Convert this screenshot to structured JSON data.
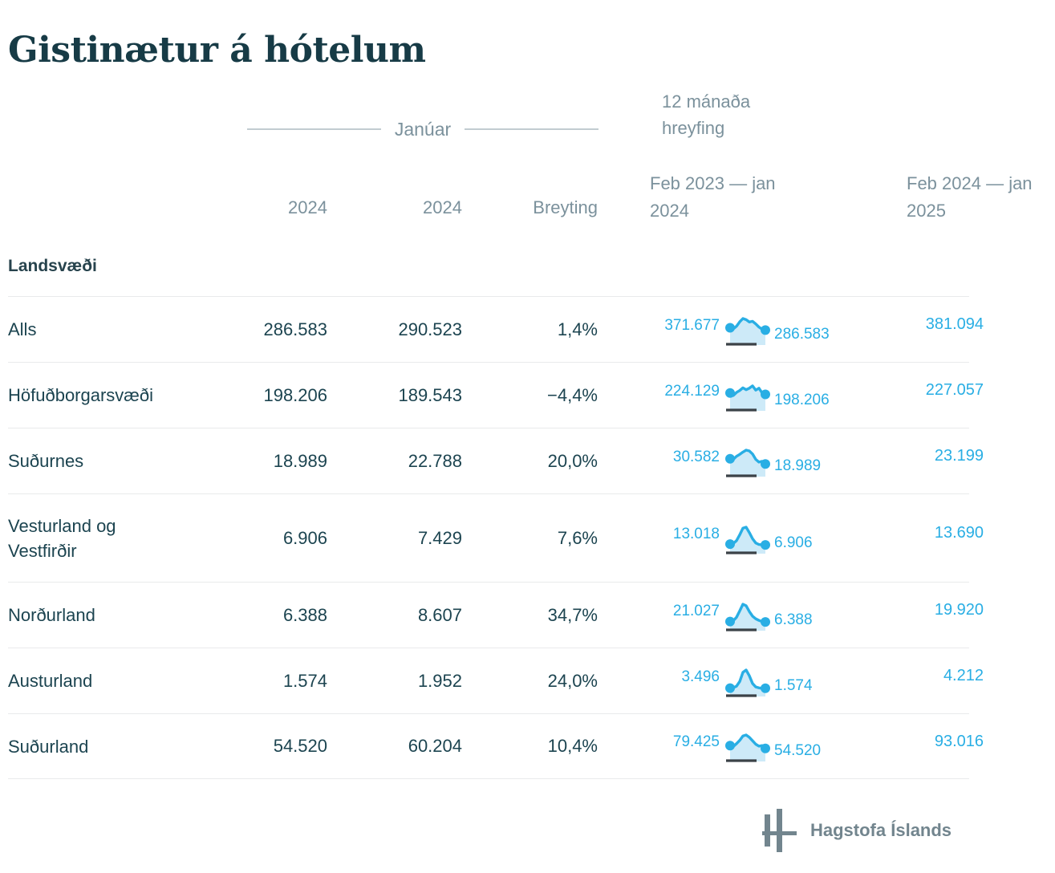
{
  "title": "Gistinætur á hótelum",
  "header": {
    "month_group": "Janúar",
    "movement_title": "12 mánaða hreyfing",
    "col_year_a": "2024",
    "col_year_b": "2024",
    "col_change": "Breyting",
    "period1": "Feb 2023 — jan 2024",
    "period2": "Feb 2024 — jan 2025"
  },
  "group_label": "Landsvæði",
  "rows": [
    {
      "name": "Alls",
      "v1": "286.583",
      "v2": "290.523",
      "change": "1,4%",
      "p1_start": "371.677",
      "p1_end": "286.583",
      "p2": "381.094",
      "series": [
        0.52,
        0.46,
        0.6,
        0.83,
        1.0,
        0.94,
        0.82,
        0.86,
        0.72,
        0.56,
        0.44,
        0.4
      ]
    },
    {
      "name": "Höfuðborgarsvæði",
      "v1": "198.206",
      "v2": "189.543",
      "change": "−4,4%",
      "p1_start": "224.129",
      "p1_end": "198.206",
      "p2": "227.057",
      "series": [
        0.55,
        0.42,
        0.58,
        0.68,
        0.82,
        0.72,
        0.8,
        0.92,
        0.7,
        0.8,
        0.55,
        0.48
      ]
    },
    {
      "name": "Suðurnes",
      "v1": "18.989",
      "v2": "22.788",
      "change": "20,0%",
      "p1_start": "30.582",
      "p1_end": "18.989",
      "p2": "23.199",
      "series": [
        0.55,
        0.52,
        0.68,
        0.78,
        0.9,
        1.0,
        0.96,
        0.8,
        0.52,
        0.38,
        0.42,
        0.28
      ]
    },
    {
      "name": "Vesturland og",
      "name2": "Vestfirðir",
      "v1": "6.906",
      "v2": "7.429",
      "change": "7,6%",
      "p1_start": "13.018",
      "p1_end": "6.906",
      "p2": "13.690",
      "series": [
        0.12,
        0.15,
        0.3,
        0.6,
        0.95,
        1.0,
        0.72,
        0.4,
        0.18,
        0.1,
        0.08,
        0.08
      ]
    },
    {
      "name": "Norðurland",
      "v1": "6.388",
      "v2": "8.607",
      "change": "34,7%",
      "p1_start": "21.027",
      "p1_end": "6.388",
      "p2": "19.920",
      "series": [
        0.1,
        0.14,
        0.32,
        0.65,
        1.0,
        0.92,
        0.62,
        0.38,
        0.24,
        0.16,
        0.1,
        0.08
      ]
    },
    {
      "name": "Austurland",
      "v1": "1.574",
      "v2": "1.952",
      "change": "24,0%",
      "p1_start": "3.496",
      "p1_end": "1.574",
      "p2": "4.212",
      "series": [
        0.06,
        0.08,
        0.16,
        0.4,
        0.88,
        1.0,
        0.7,
        0.3,
        0.12,
        0.07,
        0.05,
        0.05
      ]
    },
    {
      "name": "Suðurland",
      "v1": "54.520",
      "v2": "60.204",
      "change": "10,4%",
      "p1_start": "79.425",
      "p1_end": "54.520",
      "p2": "93.016",
      "series": [
        0.45,
        0.4,
        0.55,
        0.72,
        0.95,
        1.0,
        0.88,
        0.7,
        0.52,
        0.42,
        0.45,
        0.3
      ]
    }
  ],
  "footer": {
    "logo_text": "Hagstofa Íslands"
  },
  "colors": {
    "accent_blue": "#29aee4",
    "spark_line": "#29aee4",
    "spark_fill": "#cdeaf8",
    "spark_baseline": "#3b4247",
    "text_dark": "#1c4450",
    "text_gray": "#7b919c",
    "divider": "#e9eaeb",
    "logo_gray": "#72858e"
  },
  "chart_data": {
    "type": "table",
    "title": "Gistinætur á hótelum",
    "group_header": "Janúar",
    "movement_header": "12 mánaða hreyfing",
    "columns": [
      "Landsvæði",
      "2024",
      "2024",
      "Breyting",
      "Feb 2023 — jan 2024",
      "Feb 2024 — jan 2025"
    ],
    "rows": [
      {
        "region": "Alls",
        "jan_a": 286583,
        "jan_b": 290523,
        "change_pct": 1.4,
        "movement_start": 371677,
        "movement_end": 286583,
        "next_period": 381094
      },
      {
        "region": "Höfuðborgarsvæði",
        "jan_a": 198206,
        "jan_b": 189543,
        "change_pct": -4.4,
        "movement_start": 224129,
        "movement_end": 198206,
        "next_period": 227057
      },
      {
        "region": "Suðurnes",
        "jan_a": 18989,
        "jan_b": 22788,
        "change_pct": 20.0,
        "movement_start": 30582,
        "movement_end": 18989,
        "next_period": 23199
      },
      {
        "region": "Vesturland og Vestfirðir",
        "jan_a": 6906,
        "jan_b": 7429,
        "change_pct": 7.6,
        "movement_start": 13018,
        "movement_end": 6906,
        "next_period": 13690
      },
      {
        "region": "Norðurland",
        "jan_a": 6388,
        "jan_b": 8607,
        "change_pct": 34.7,
        "movement_start": 21027,
        "movement_end": 6388,
        "next_period": 19920
      },
      {
        "region": "Austurland",
        "jan_a": 1574,
        "jan_b": 1952,
        "change_pct": 24.0,
        "movement_start": 3496,
        "movement_end": 1574,
        "next_period": 4212
      },
      {
        "region": "Suðurland",
        "jan_a": 54520,
        "jan_b": 60204,
        "change_pct": 10.4,
        "movement_start": 79425,
        "movement_end": 54520,
        "next_period": 93016
      }
    ],
    "sparkline_note": "12-month movement sparklines; series values are normalized 0–1 visual estimates"
  }
}
